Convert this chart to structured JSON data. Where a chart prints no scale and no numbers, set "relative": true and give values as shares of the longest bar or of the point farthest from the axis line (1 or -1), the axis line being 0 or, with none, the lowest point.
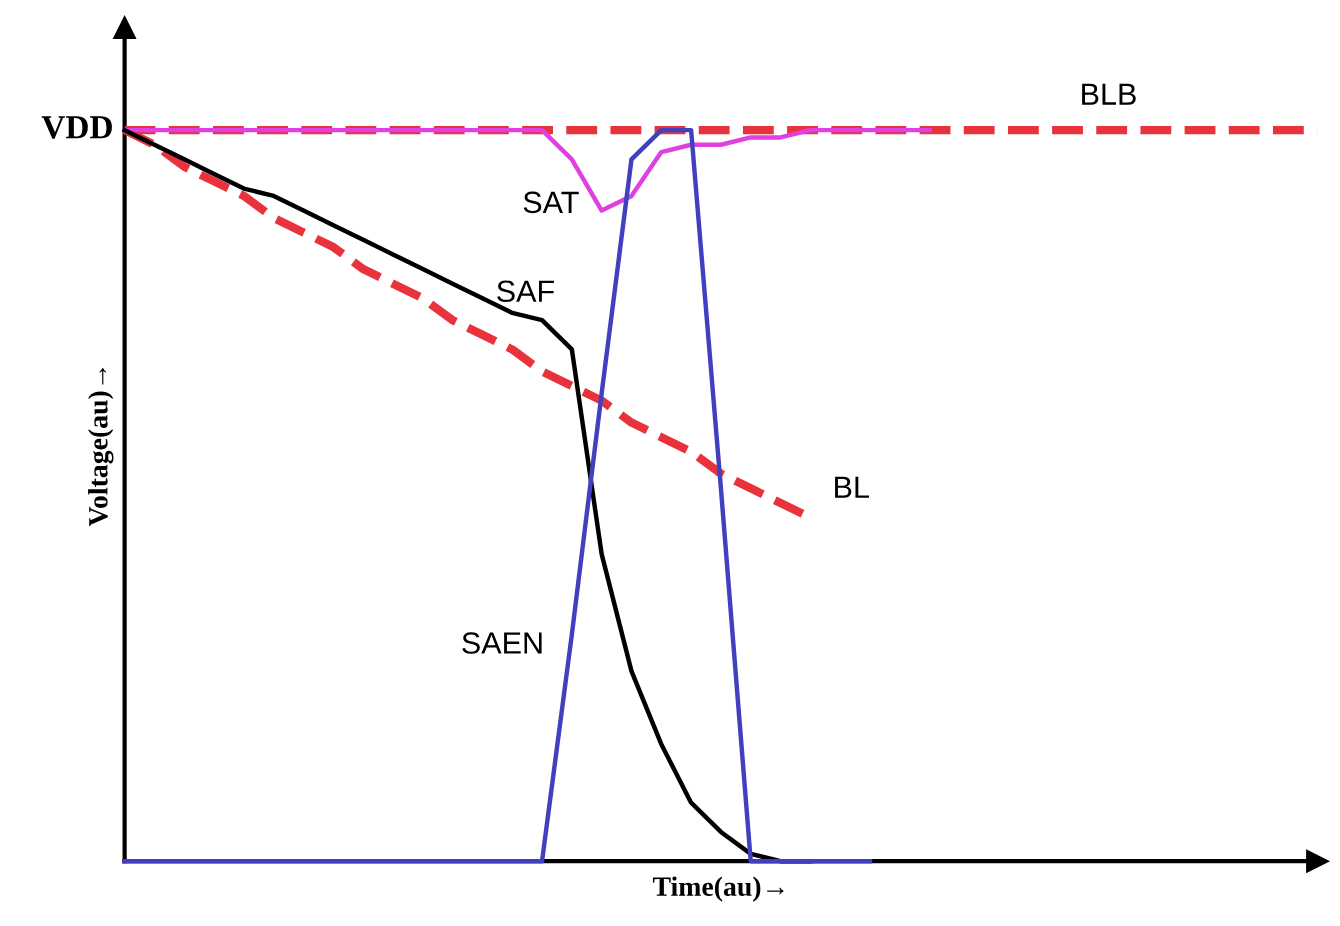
{
  "chart_data": {
    "type": "line",
    "relative": true,
    "xlabel": "Time(au)→",
    "ylabel": "Voltage(au)→",
    "marker": "none",
    "categories": [
      null,
      null,
      null,
      null,
      null,
      null,
      null,
      null,
      null,
      null,
      null,
      null,
      null,
      null,
      null,
      null,
      null,
      null,
      null,
      null,
      null,
      null,
      null,
      null,
      null,
      null,
      null,
      null,
      null,
      null,
      null,
      null,
      null,
      null,
      null,
      null,
      null,
      null,
      null,
      null,
      null
    ],
    "series": [
      {
        "name": "BLB",
        "color": "#e8323c",
        "line_style": "dashed",
        "values": [
          1,
          1,
          1,
          1,
          1,
          1,
          1,
          1,
          1,
          1,
          1,
          1,
          1,
          1,
          1,
          1,
          1,
          1,
          1,
          1,
          1,
          1,
          1,
          1,
          1,
          1,
          1,
          1,
          1,
          1,
          1,
          1,
          1,
          1,
          1,
          1,
          1,
          1,
          1,
          1,
          1
        ]
      },
      {
        "name": "BL",
        "color": "#e8323c",
        "line_style": "dashed",
        "values": [
          1,
          0.98,
          0.95,
          0.93,
          0.91,
          0.88,
          0.86,
          0.84,
          0.81,
          0.79,
          0.77,
          0.74,
          0.72,
          0.7,
          0.67,
          0.65,
          0.63,
          0.6,
          0.58,
          0.56,
          0.53,
          0.51,
          0.49,
          0.47,
          null,
          null,
          null,
          null,
          null,
          null,
          null,
          null,
          null,
          null,
          null,
          null,
          null,
          null,
          null,
          null,
          null
        ]
      },
      {
        "name": "SAT",
        "color": "#e040e0",
        "line_style": "solid",
        "values": [
          1,
          1,
          1,
          1,
          1,
          1,
          1,
          1,
          1,
          1,
          1,
          1,
          1,
          1,
          1,
          0.96,
          0.89,
          0.91,
          0.97,
          0.98,
          0.98,
          0.99,
          0.99,
          1,
          1,
          1,
          1,
          1,
          null,
          null,
          null,
          null,
          null,
          null,
          null,
          null,
          null,
          null,
          null,
          null,
          null
        ]
      },
      {
        "name": "SAF",
        "color": "#000000",
        "line_style": "solid",
        "values": [
          1,
          0.98,
          0.96,
          0.94,
          0.92,
          0.91,
          0.89,
          0.87,
          0.85,
          0.83,
          0.81,
          0.79,
          0.77,
          0.75,
          0.74,
          0.7,
          0.42,
          0.26,
          0.16,
          0.08,
          0.04,
          0.01,
          0,
          0,
          null,
          null,
          null,
          null,
          null,
          null,
          null,
          null,
          null,
          null,
          null,
          null,
          null,
          null,
          null,
          null,
          null
        ]
      },
      {
        "name": "SAEN",
        "color": "#4040c0",
        "line_style": "solid",
        "values": [
          0,
          0,
          0,
          0,
          0,
          0,
          0,
          0,
          0,
          0,
          0,
          0,
          0,
          0,
          0,
          0.31,
          0.64,
          0.96,
          1,
          1,
          0.51,
          0,
          0,
          0,
          0,
          0,
          null,
          null,
          null,
          null,
          null,
          null,
          null,
          null,
          null,
          null,
          null,
          null,
          null,
          null,
          null
        ]
      }
    ],
    "annotations": [
      "VDD"
    ]
  }
}
